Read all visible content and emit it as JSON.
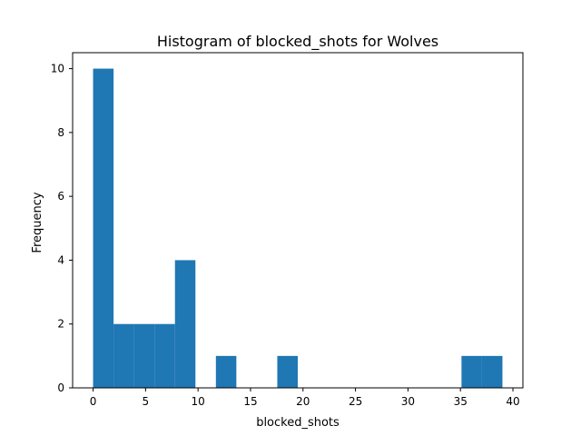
{
  "chart_data": {
    "type": "bar",
    "title": "Histogram of blocked_shots for Wolves",
    "xlabel": "blocked_shots",
    "ylabel": "Frequency",
    "bin_edges": [
      0,
      1.95,
      3.9,
      5.85,
      7.8,
      9.75,
      11.7,
      13.65,
      15.6,
      17.55,
      19.5,
      21.45,
      23.4,
      25.35,
      27.3,
      29.25,
      31.2,
      33.15,
      35.1,
      37.05,
      39
    ],
    "values": [
      10,
      2,
      2,
      2,
      4,
      0,
      1,
      0,
      0,
      1,
      0,
      0,
      0,
      0,
      0,
      0,
      0,
      0,
      1,
      1
    ],
    "xlim": [
      -1.95,
      40.95
    ],
    "ylim": [
      0,
      10.5
    ],
    "x_ticks": [
      0,
      5,
      10,
      15,
      20,
      25,
      30,
      35,
      40
    ],
    "y_ticks": [
      0,
      2,
      4,
      6,
      8,
      10
    ],
    "bar_color": "#1f77b4",
    "grid": false,
    "legend": "none"
  }
}
